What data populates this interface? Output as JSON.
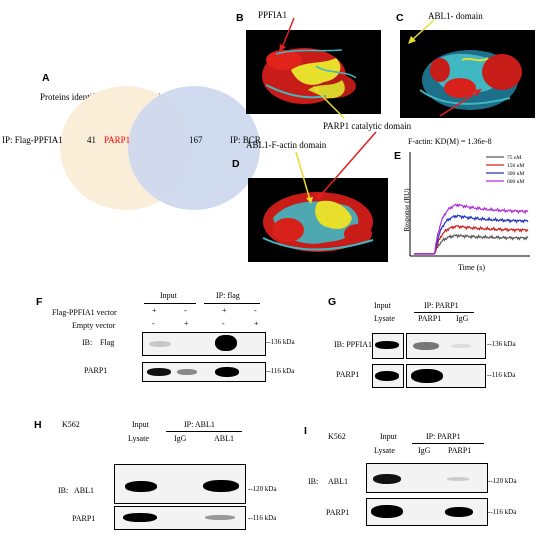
{
  "panels": {
    "A": "A",
    "B": "B",
    "C": "C",
    "D": "D",
    "E": "E",
    "F": "F",
    "G": "G",
    "H": "H",
    "I": "I"
  },
  "venn": {
    "title": "Proteins identified by MS analysis",
    "left_label": "IP: Flag-PPFIA1",
    "left_count": "41",
    "overlap": "PARP1",
    "right_count": "167",
    "right_label": "IP: BCR",
    "colors": {
      "left": "#fbeed9",
      "right": "#cdd8ee",
      "overlap_text": "#ff0000"
    }
  },
  "structures": {
    "b_label": "PPFIA1",
    "c_label": "ABL1- domain",
    "d_label": "ABL1-F-actin domain",
    "catalytic_label": "PARP1 catalytic domain",
    "colors": {
      "helix": "#d8211b",
      "strand": "#e5de2c",
      "coil": "#3fb8c2",
      "arrow_yellow": "#e8dc2c",
      "arrow_red": "#e02020"
    }
  },
  "chart_data": {
    "type": "line",
    "title": "F-actin: KD(M) = 1.36e-8",
    "xlabel": "Time (s)",
    "ylabel": "Response (RU)",
    "series": [
      {
        "name": "75 nM",
        "color": "#5a5a5a",
        "plateau": 0.3
      },
      {
        "name": "150 nM",
        "color": "#d02020",
        "plateau": 0.45
      },
      {
        "name": "300 nM",
        "color": "#2430c0",
        "plateau": 0.62
      },
      {
        "name": "600 nM",
        "color": "#b030d8",
        "plateau": 0.8
      }
    ],
    "grid": false,
    "legend": "top-right"
  },
  "panel_f": {
    "header_input": "Input",
    "header_ip": "IP: flag",
    "row1_label": "Flag-PPFIA1 vector",
    "row2_label": "Empty vector",
    "row1_signs": [
      "+",
      "-",
      "+",
      "-"
    ],
    "row2_signs": [
      "-",
      "+",
      "-",
      "+"
    ],
    "ib_label": "IB:",
    "blot1_label": "Flag",
    "blot2_label": "PARP1",
    "blot1_mw": "--136 kDa",
    "blot2_mw": "--116 kDa"
  },
  "panel_g": {
    "header_input": "Input",
    "header_ip": "IP: PARP1",
    "lanes": [
      "Lysate",
      "PARP1",
      "IgG"
    ],
    "blot1_label": "IB: PPFIA1",
    "blot2_label": "PARP1",
    "blot1_mw": "--136 kDa",
    "blot2_mw": "--116 kDa"
  },
  "panel_h": {
    "cell_line": "K562",
    "header_input": "Input",
    "header_ip": "IP: ABL1",
    "lanes": [
      "Lysate",
      "IgG",
      "ABL1"
    ],
    "ib_label": "IB:",
    "blot1_label": "ABL1",
    "blot2_label": "PARP1",
    "blot1_mw": "--120 kDa",
    "blot2_mw": "--116 kDa"
  },
  "panel_i": {
    "cell_line": "K562",
    "header_input": "Input",
    "header_ip": "IP: PARP1",
    "lanes": [
      "Lysate",
      "IgG",
      "PARP1"
    ],
    "ib_label": "IB:",
    "blot1_label": "ABL1",
    "blot2_label": "PARP1",
    "blot1_mw": "--120 kDa",
    "blot2_mw": "--116 kDa"
  }
}
